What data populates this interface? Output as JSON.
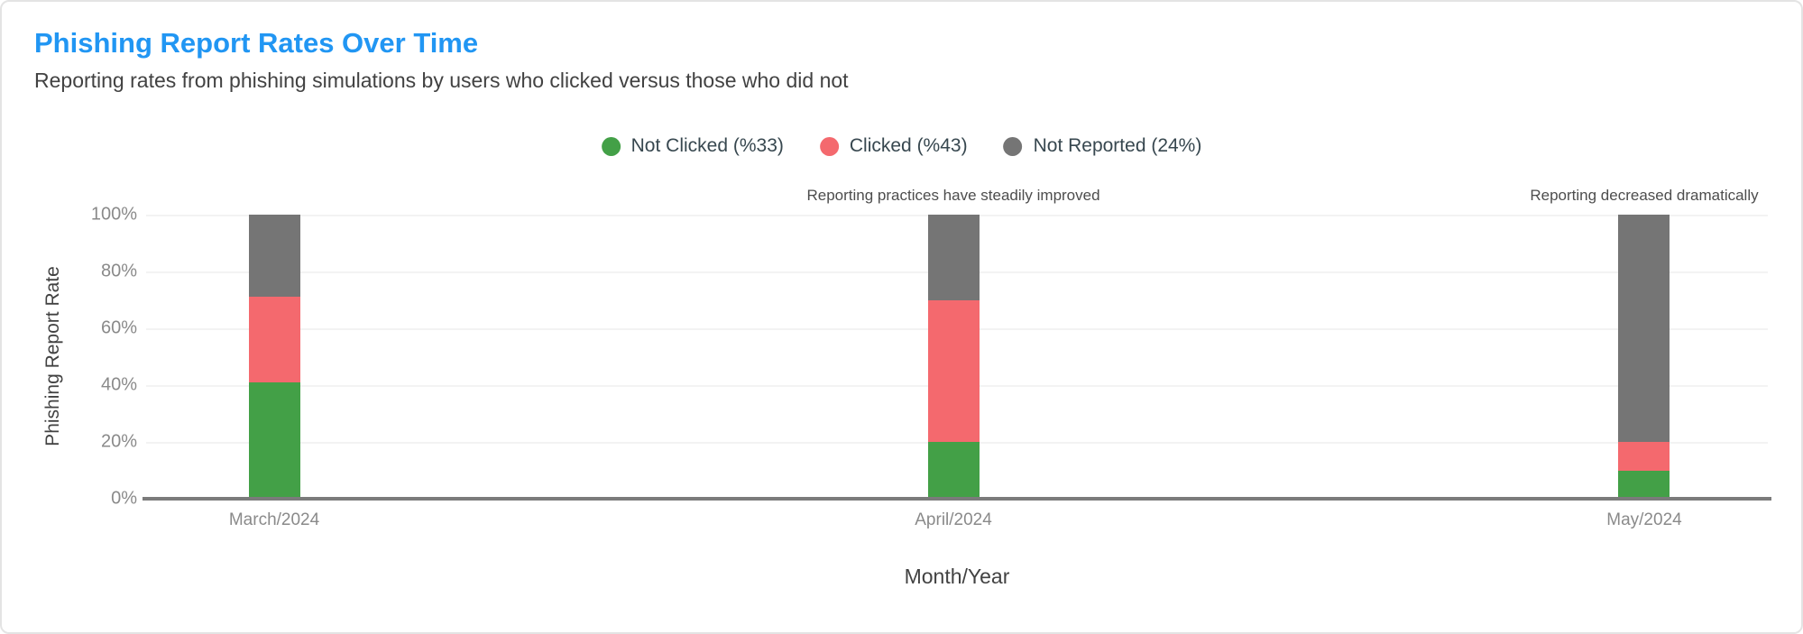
{
  "page": {
    "title": "Phishing Report Rates Over Time",
    "subtitle": "Reporting rates from phishing simulations by users who clicked versus those who did not",
    "title_color": "#2196f3"
  },
  "legend": [
    {
      "label": "Not Clicked (%33)",
      "color": "#43a047"
    },
    {
      "label": "Clicked (%43)",
      "color": "#f4696e"
    },
    {
      "label": "Not Reported (24%)",
      "color": "#757575"
    }
  ],
  "annotations": [
    {
      "text": "Reporting practices have steadily improved",
      "target": "April/2024"
    },
    {
      "text": "Reporting decreased dramatically",
      "target": "May/2024"
    }
  ],
  "chart_data": {
    "type": "bar",
    "stacked": true,
    "title": "Phishing Report Rates Over Time",
    "xlabel": "Month/Year",
    "ylabel": "Phishing Report Rate",
    "categories": [
      "March/2024",
      "April/2024",
      "May/2024"
    ],
    "series": [
      {
        "name": "Not Clicked (%33)",
        "color": "#43a047",
        "values": [
          41,
          20,
          10
        ]
      },
      {
        "name": "Clicked (%43)",
        "color": "#f4696e",
        "values": [
          30,
          50,
          10
        ]
      },
      {
        "name": "Not Reported (24%)",
        "color": "#757575",
        "values": [
          29,
          30,
          80
        ]
      }
    ],
    "ylim": [
      0,
      100
    ],
    "yticks": [
      "0%",
      "20%",
      "40%",
      "60%",
      "80%",
      "100%"
    ],
    "grid": true,
    "legend_position": "top",
    "axis_color": "#7b7b7b",
    "gridline_color": "#f3f3f3"
  }
}
